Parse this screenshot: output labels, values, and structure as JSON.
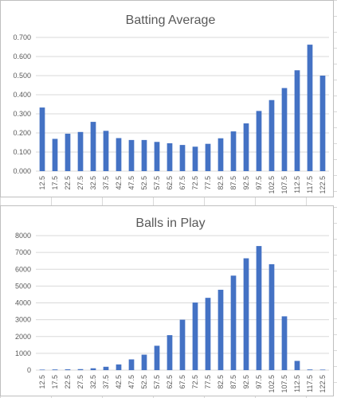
{
  "chart_data": [
    {
      "type": "bar",
      "title": "Batting Average",
      "xlabel": "",
      "ylabel": "",
      "ylim": [
        0,
        0.7
      ],
      "yticks": [
        "0.000",
        "0.100",
        "0.200",
        "0.300",
        "0.400",
        "0.500",
        "0.600",
        "0.700"
      ],
      "grid": true,
      "categories": [
        "12.5",
        "17.5",
        "22.5",
        "27.5",
        "32.5",
        "37.5",
        "42.5",
        "47.5",
        "52.5",
        "57.5",
        "62.5",
        "67.5",
        "72.5",
        "77.5",
        "82.5",
        "87.5",
        "92.5",
        "97.5",
        "102.5",
        "107.5",
        "112.5",
        "117.5",
        "122.5"
      ],
      "values": [
        0.333,
        0.169,
        0.196,
        0.205,
        0.258,
        0.211,
        0.173,
        0.163,
        0.163,
        0.153,
        0.146,
        0.137,
        0.128,
        0.143,
        0.172,
        0.208,
        0.25,
        0.315,
        0.372,
        0.435,
        0.528,
        0.662,
        0.5
      ],
      "bar_color": "#4472C4"
    },
    {
      "type": "bar",
      "title": "Balls in Play",
      "xlabel": "",
      "ylabel": "",
      "ylim": [
        0,
        8000
      ],
      "yticks": [
        "0",
        "1000",
        "2000",
        "3000",
        "4000",
        "5000",
        "6000",
        "7000",
        "8000"
      ],
      "grid": true,
      "categories": [
        "12.5",
        "17.5",
        "22.5",
        "27.5",
        "32.5",
        "37.5",
        "42.5",
        "47.5",
        "52.5",
        "57.5",
        "62.5",
        "67.5",
        "72.5",
        "77.5",
        "82.5",
        "87.5",
        "92.5",
        "97.5",
        "102.5",
        "107.5",
        "112.5",
        "117.5",
        "122.5"
      ],
      "values": [
        30,
        40,
        50,
        60,
        110,
        200,
        340,
        640,
        920,
        1450,
        2080,
        3000,
        4020,
        4300,
        4780,
        5620,
        6650,
        7380,
        6300,
        3200,
        550,
        40,
        30
      ],
      "bar_color": "#4472C4"
    }
  ]
}
